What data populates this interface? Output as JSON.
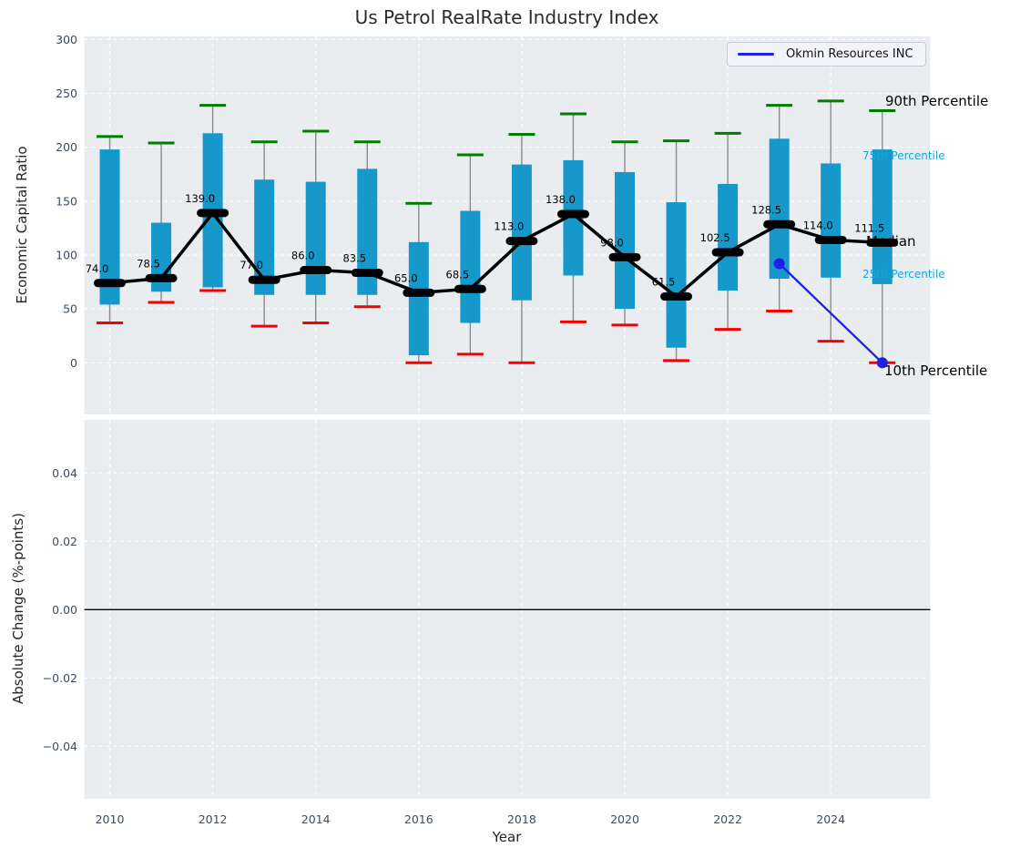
{
  "title": "Us Petrol RealRate Industry Index",
  "legend": {
    "label": "Okmin Resources INC"
  },
  "annotations": {
    "p90": "90th Percentile",
    "p75": "75th Percentile",
    "median": "Median",
    "p25": "25th Percentile",
    "p10": "10th Percentile"
  },
  "colors": {
    "bar": "#1798ca",
    "p90_cap": "#007c00",
    "p10_cap": "#f80000",
    "median": "#000000",
    "company": "#1f1fe8",
    "whisker": "#8a8a8a",
    "axes_bg": "#e9edf0",
    "grid": "#ffffff",
    "tick": "#3e4c60",
    "teal_label": "#1da2d8",
    "zero_line": "#000000"
  },
  "chart_data": [
    {
      "type": "boxplot",
      "title": "Us Petrol RealRate Industry Index",
      "xlabel": "Year",
      "ylabel": "Economic Capital Ratio",
      "ylim": [
        -48,
        303
      ],
      "xlim": [
        2009.5,
        2025.9
      ],
      "grid": true,
      "yticks": [
        0,
        50,
        100,
        150,
        200,
        250,
        300
      ],
      "xticks": [
        2010,
        2012,
        2014,
        2016,
        2018,
        2020,
        2022,
        2024
      ],
      "years": [
        2010,
        2011,
        2012,
        2013,
        2014,
        2015,
        2016,
        2017,
        2018,
        2019,
        2020,
        2021,
        2022,
        2023,
        2024,
        2025
      ],
      "series": [
        {
          "name": "90th Percentile",
          "values": [
            210,
            204,
            239,
            205,
            215,
            205,
            148,
            193,
            212,
            231,
            205,
            206,
            213,
            239,
            243,
            234
          ]
        },
        {
          "name": "75th Percentile",
          "values": [
            198,
            130,
            213,
            170,
            168,
            180,
            112,
            141,
            184,
            188,
            177,
            149,
            166,
            208,
            185,
            198
          ]
        },
        {
          "name": "Median",
          "values": [
            74.0,
            78.5,
            139.0,
            77.0,
            86.0,
            83.5,
            65.0,
            68.5,
            113.0,
            138.0,
            98.0,
            61.5,
            102.5,
            128.5,
            114.0,
            111.5
          ]
        },
        {
          "name": "25th Percentile",
          "values": [
            54,
            66,
            70,
            63,
            63,
            63,
            7,
            37,
            58,
            81,
            50,
            14,
            67,
            78,
            79,
            73
          ]
        },
        {
          "name": "10th Percentile",
          "values": [
            37,
            56,
            67,
            34,
            37,
            52,
            0,
            8,
            0,
            38,
            35,
            2,
            31,
            48,
            20,
            0
          ]
        }
      ],
      "median_labels": [
        "74.0",
        "78.5",
        "139.0",
        "77.0",
        "86.0",
        "83.5",
        "65.0",
        "68.5",
        "113.0",
        "138.0",
        "98.0",
        "61.5",
        "102.5",
        "128.5",
        "114.0",
        "111.5"
      ],
      "company_series": {
        "name": "Okmin Resources INC",
        "x": [
          2023,
          2025
        ],
        "y": [
          92,
          0
        ]
      },
      "legend_position": "upper right"
    },
    {
      "type": "line",
      "ylabel": "Absolute Change (%-points)",
      "yticks": [
        0.04,
        0.02,
        0,
        -0.02,
        -0.04
      ],
      "ytick_labels": [
        "0.04",
        "0.02",
        "0.00",
        "−0.02",
        "−0.04"
      ],
      "ylim": [
        -0.0555,
        0.0555
      ],
      "grid": true,
      "zero_line": 0,
      "series": []
    }
  ]
}
